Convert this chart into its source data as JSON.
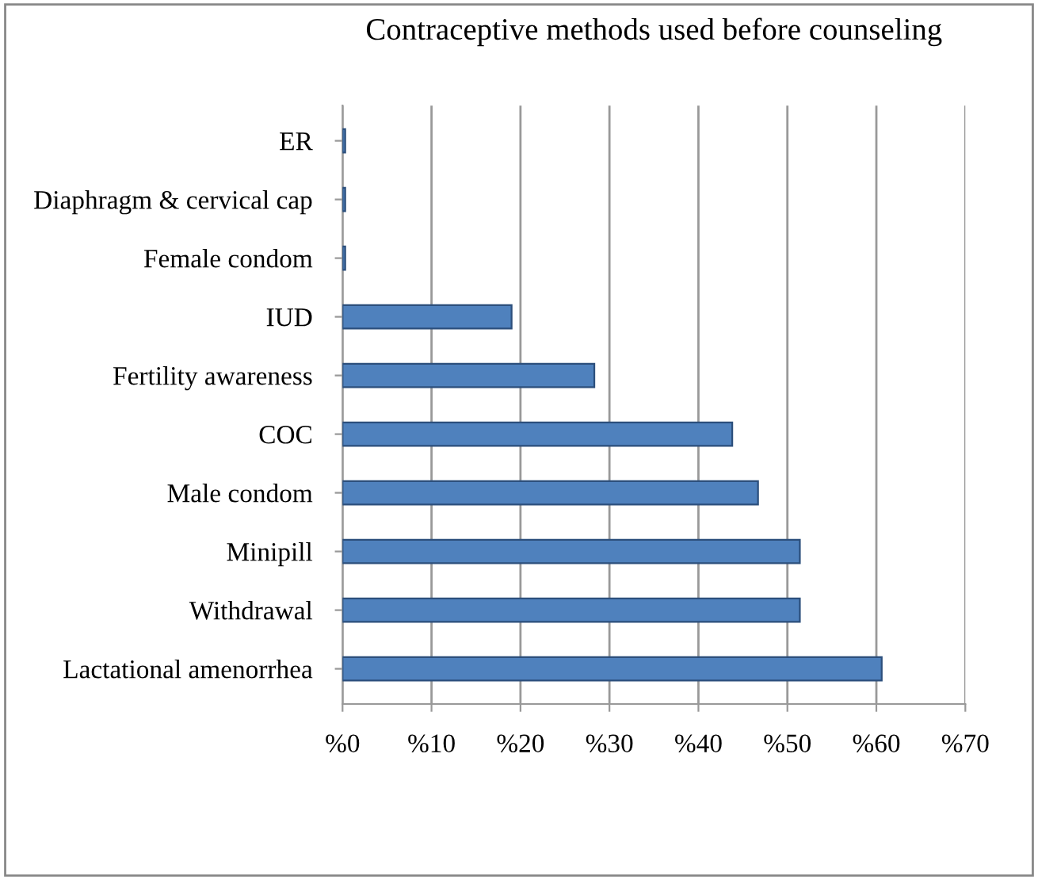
{
  "chart_data": {
    "type": "bar",
    "orientation": "horizontal",
    "title": "Contraceptive methods used before counseling",
    "categories": [
      "ER",
      "Diaphragm & cervical cap",
      "Female condom",
      "IUD",
      "Fertility awareness",
      "COC",
      "Male condom",
      "Minipill",
      "Withdrawal",
      "Lactational amenorrhea"
    ],
    "values": [
      0.3,
      0.3,
      0.3,
      19,
      28.3,
      43.8,
      46.7,
      51.4,
      51.4,
      60.6
    ],
    "color": "#4f81bd",
    "xlim": [
      0,
      70
    ],
    "xticks": [
      {
        "value": 0,
        "label": "%0"
      },
      {
        "value": 10,
        "label": "%10"
      },
      {
        "value": 20,
        "label": "%20"
      },
      {
        "value": 30,
        "label": "%30"
      },
      {
        "value": 40,
        "label": "%40"
      },
      {
        "value": 50,
        "label": "%50"
      },
      {
        "value": 60,
        "label": "%60"
      },
      {
        "value": 70,
        "label": "%70"
      }
    ],
    "grid": "x",
    "legend": false
  }
}
